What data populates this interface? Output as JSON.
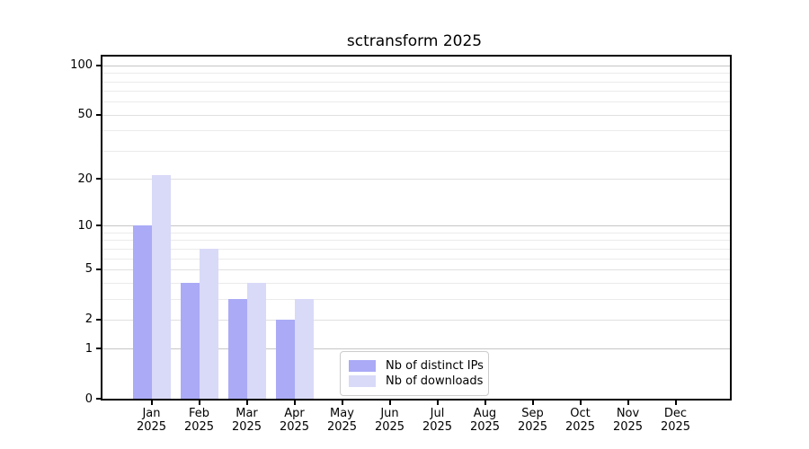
{
  "chart_data": {
    "type": "bar",
    "title": "sctransform 2025",
    "categories": [
      {
        "month": "Jan",
        "year": "2025"
      },
      {
        "month": "Feb",
        "year": "2025"
      },
      {
        "month": "Mar",
        "year": "2025"
      },
      {
        "month": "Apr",
        "year": "2025"
      },
      {
        "month": "May",
        "year": "2025"
      },
      {
        "month": "Jun",
        "year": "2025"
      },
      {
        "month": "Jul",
        "year": "2025"
      },
      {
        "month": "Aug",
        "year": "2025"
      },
      {
        "month": "Sep",
        "year": "2025"
      },
      {
        "month": "Oct",
        "year": "2025"
      },
      {
        "month": "Nov",
        "year": "2025"
      },
      {
        "month": "Dec",
        "year": "2025"
      }
    ],
    "series": [
      {
        "name": "Nb of distinct IPs",
        "color": "#aaaaf6",
        "values": [
          10,
          4,
          3,
          2,
          0,
          0,
          0,
          0,
          0,
          0,
          0,
          0
        ]
      },
      {
        "name": "Nb of downloads",
        "color": "#d9d9f8",
        "values": [
          21,
          7,
          4,
          3,
          0,
          0,
          0,
          0,
          0,
          0,
          0,
          0
        ]
      }
    ],
    "yscale": "log1p",
    "ylim": [
      0,
      113
    ],
    "yticks": [
      0,
      1,
      2,
      5,
      10,
      20,
      50,
      100
    ],
    "yticks_major": [
      1,
      10,
      100
    ],
    "yticks_minor": [
      3,
      4,
      6,
      7,
      8,
      9,
      30,
      40,
      60,
      70,
      80,
      90
    ],
    "grid": "horizontal",
    "legend_position": "inside-bottom-center",
    "colors": {
      "axis": "#000000",
      "grid_major": "#c6c6c6",
      "grid_minor": "#ebebeb",
      "background": "#ffffff"
    }
  }
}
